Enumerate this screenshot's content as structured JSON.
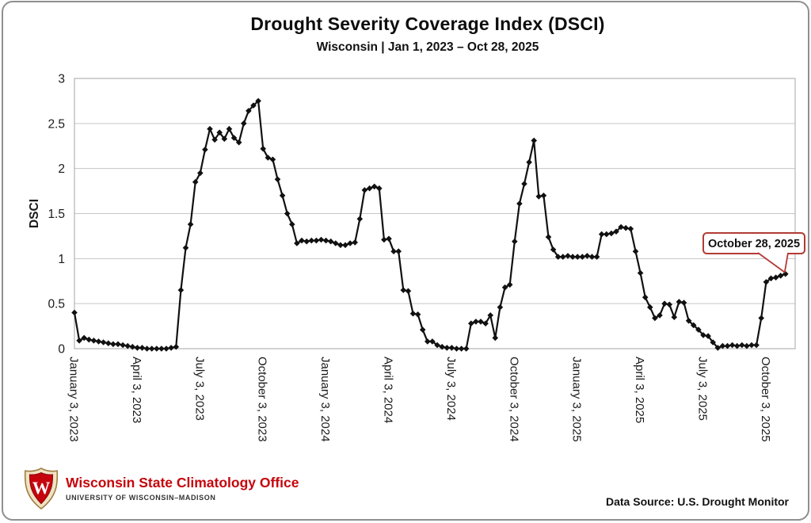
{
  "header": {
    "title": "Drought Severity Coverage Index (DSCI)",
    "subtitle": "Wisconsin | Jan 1, 2023 – Oct 28, 2025"
  },
  "chart_data": {
    "type": "line",
    "title": "Drought Severity Coverage Index (DSCI)",
    "subtitle": "Wisconsin | Jan 1, 2023 – Oct 28, 2025",
    "xlabel": "",
    "ylabel": "DSCI",
    "ylim": [
      0,
      3
    ],
    "y_ticks": [
      0,
      0.5,
      1,
      1.5,
      2,
      2.5,
      3
    ],
    "grid": true,
    "legend_position": "none",
    "x_unit": "weeks",
    "x_start_date": "January 3, 2023",
    "x_interval": "weekly",
    "xlim_weeks": [
      0,
      149
    ],
    "x_ticks": [
      {
        "index": 0,
        "label": "January 3, 2023"
      },
      {
        "index": 13,
        "label": "April 3, 2023"
      },
      {
        "index": 26,
        "label": "July 3, 2023"
      },
      {
        "index": 39,
        "label": "October 3, 2023"
      },
      {
        "index": 52,
        "label": "January 3, 2024"
      },
      {
        "index": 65,
        "label": "April 3, 2024"
      },
      {
        "index": 78,
        "label": "July 3, 2024"
      },
      {
        "index": 91,
        "label": "October 3, 2024"
      },
      {
        "index": 104,
        "label": "January 3, 2025"
      },
      {
        "index": 117,
        "label": "April 3, 2025"
      },
      {
        "index": 130,
        "label": "July 3, 2025"
      },
      {
        "index": 143,
        "label": "October 3, 2025"
      }
    ],
    "series": [
      {
        "name": "DSCI",
        "color": "#111111",
        "marker": "diamond",
        "values": [
          0.4,
          0.09,
          0.12,
          0.1,
          0.09,
          0.08,
          0.07,
          0.06,
          0.05,
          0.05,
          0.04,
          0.03,
          0.02,
          0.01,
          0.01,
          0.0,
          0.0,
          0.0,
          0.0,
          0.0,
          0.01,
          0.02,
          0.65,
          1.12,
          1.38,
          1.85,
          1.95,
          2.21,
          2.44,
          2.32,
          2.4,
          2.33,
          2.44,
          2.34,
          2.29,
          2.5,
          2.64,
          2.7,
          2.75,
          2.22,
          2.12,
          2.1,
          1.88,
          1.7,
          1.5,
          1.38,
          1.17,
          1.2,
          1.19,
          1.2,
          1.2,
          1.21,
          1.2,
          1.19,
          1.17,
          1.15,
          1.15,
          1.17,
          1.18,
          1.44,
          1.76,
          1.78,
          1.8,
          1.78,
          1.21,
          1.22,
          1.08,
          1.08,
          0.65,
          0.64,
          0.39,
          0.38,
          0.21,
          0.08,
          0.08,
          0.04,
          0.02,
          0.01,
          0.01,
          0.0,
          0.0,
          0.0,
          0.28,
          0.3,
          0.3,
          0.28,
          0.37,
          0.12,
          0.46,
          0.68,
          0.71,
          1.19,
          1.61,
          1.83,
          2.07,
          2.31,
          1.69,
          1.7,
          1.24,
          1.1,
          1.02,
          1.02,
          1.03,
          1.02,
          1.02,
          1.02,
          1.03,
          1.02,
          1.02,
          1.27,
          1.27,
          1.28,
          1.3,
          1.35,
          1.34,
          1.33,
          1.08,
          0.84,
          0.57,
          0.46,
          0.34,
          0.37,
          0.5,
          0.49,
          0.35,
          0.52,
          0.51,
          0.31,
          0.26,
          0.21,
          0.15,
          0.14,
          0.07,
          0.01,
          0.03,
          0.03,
          0.04,
          0.03,
          0.04,
          0.03,
          0.04,
          0.04,
          0.34,
          0.74,
          0.78,
          0.79,
          0.81,
          0.83
        ]
      }
    ],
    "annotation": {
      "label": "October 28, 2025",
      "target_index": 147,
      "target_value": 0.83,
      "box_border_color": "#b23b34"
    },
    "colors": {
      "grid": "#c6c6c6",
      "plot_border": "#b3b3b3",
      "line": "#111111",
      "tick_text": "#1a1a1a"
    }
  },
  "footer": {
    "logo": {
      "org": "Wisconsin State Climatology Office",
      "sub": "UNIVERSITY OF WISCONSIN–MADISON",
      "crest_icon": "uw-crest-shield",
      "crest_letter": "W",
      "org_color": "#c5050c"
    },
    "data_source": "Data Source: U.S. Drought Monitor"
  }
}
